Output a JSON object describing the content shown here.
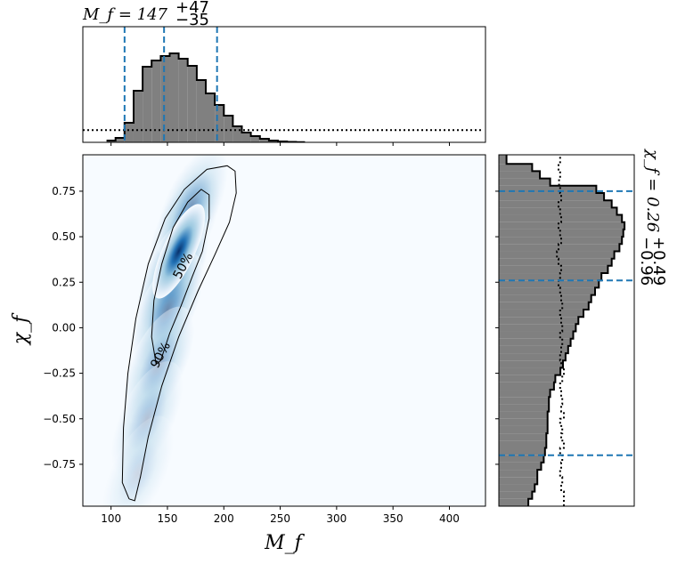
{
  "chart_data": [
    {
      "panel": "joint",
      "type": "heatmap",
      "xlabel": "M_f",
      "ylabel": "χ_f",
      "xlim": [
        75,
        432
      ],
      "ylim": [
        -0.98,
        0.95
      ],
      "xticks": [
        "100",
        "150",
        "200",
        "250",
        "300",
        "350",
        "400"
      ],
      "yticks": [
        "−0.75",
        "−0.50",
        "−0.25",
        "0.00",
        "0.25",
        "0.50",
        "0.75"
      ],
      "colormap": "Blues",
      "density_peak": {
        "x": 160,
        "y": 0.42
      },
      "contours": [
        {
          "label": "50%",
          "points": [
            [
              140,
              -0.2
            ],
            [
              136,
              -0.05
            ],
            [
              138,
              0.15
            ],
            [
              145,
              0.35
            ],
            [
              155,
              0.55
            ],
            [
              168,
              0.69
            ],
            [
              180,
              0.76
            ],
            [
              187,
              0.73
            ],
            [
              187,
              0.6
            ],
            [
              181,
              0.42
            ],
            [
              172,
              0.28
            ],
            [
              162,
              0.12
            ],
            [
              152,
              -0.03
            ],
            [
              144,
              -0.18
            ],
            [
              140,
              -0.2
            ]
          ]
        },
        {
          "label": "90%",
          "points": [
            [
              116,
              -0.94
            ],
            [
              110,
              -0.85
            ],
            [
              111,
              -0.55
            ],
            [
              115,
              -0.25
            ],
            [
              122,
              0.05
            ],
            [
              133,
              0.35
            ],
            [
              148,
              0.6
            ],
            [
              165,
              0.76
            ],
            [
              185,
              0.87
            ],
            [
              203,
              0.89
            ],
            [
              210,
              0.86
            ],
            [
              211,
              0.74
            ],
            [
              205,
              0.58
            ],
            [
              192,
              0.4
            ],
            [
              177,
              0.2
            ],
            [
              160,
              -0.05
            ],
            [
              145,
              -0.32
            ],
            [
              133,
              -0.6
            ],
            [
              126,
              -0.82
            ],
            [
              121,
              -0.95
            ],
            [
              116,
              -0.94
            ]
          ]
        }
      ]
    },
    {
      "panel": "top-marginal",
      "type": "bar",
      "title": "M_f = 147",
      "title_super": "+47",
      "title_sub": "−35",
      "bin_edges": [
        96,
        104,
        112,
        120,
        128,
        136,
        144,
        152,
        160,
        168,
        176,
        184,
        192,
        200,
        208,
        216,
        224,
        232,
        240,
        248,
        256,
        264,
        272
      ],
      "values": [
        0.02,
        0.05,
        0.22,
        0.58,
        0.85,
        0.92,
        0.97,
        1.0,
        0.94,
        0.86,
        0.7,
        0.55,
        0.42,
        0.3,
        0.18,
        0.11,
        0.07,
        0.04,
        0.02,
        0.01,
        0.005,
        0.003
      ],
      "prior_level": 0.13,
      "credible_lines": [
        112,
        147,
        194
      ],
      "line_color": "#1f77b4"
    },
    {
      "panel": "right-marginal",
      "type": "bar",
      "title": "χ_f = 0.26",
      "title_super": "+0.49",
      "title_sub": "−0.96",
      "bin_edges": [
        -0.98,
        -0.94,
        -0.9,
        -0.86,
        -0.82,
        -0.78,
        -0.74,
        -0.7,
        -0.66,
        -0.62,
        -0.58,
        -0.54,
        -0.5,
        -0.46,
        -0.42,
        -0.38,
        -0.34,
        -0.3,
        -0.26,
        -0.22,
        -0.18,
        -0.14,
        -0.1,
        -0.06,
        -0.02,
        0.02,
        0.06,
        0.1,
        0.14,
        0.18,
        0.22,
        0.26,
        0.3,
        0.34,
        0.38,
        0.42,
        0.46,
        0.5,
        0.54,
        0.58,
        0.62,
        0.66,
        0.7,
        0.74,
        0.78,
        0.82,
        0.86,
        0.9,
        0.95
      ],
      "values": [
        0.23,
        0.26,
        0.28,
        0.3,
        0.3,
        0.33,
        0.35,
        0.36,
        0.37,
        0.37,
        0.38,
        0.38,
        0.38,
        0.39,
        0.39,
        0.4,
        0.43,
        0.44,
        0.48,
        0.5,
        0.52,
        0.54,
        0.56,
        0.58,
        0.6,
        0.62,
        0.66,
        0.7,
        0.72,
        0.75,
        0.78,
        0.8,
        0.85,
        0.88,
        0.9,
        0.94,
        0.96,
        0.97,
        0.98,
        0.96,
        0.92,
        0.88,
        0.82,
        0.76,
        0.4,
        0.32,
        0.26,
        0.06
      ],
      "prior_values": [
        0.55,
        0.55,
        0.5,
        0.52,
        0.48,
        0.5,
        0.52,
        0.48,
        0.55,
        0.5,
        0.52,
        0.48,
        0.55,
        0.5,
        0.52,
        0.5,
        0.48,
        0.52,
        0.55,
        0.5,
        0.48,
        0.5,
        0.52,
        0.48,
        0.52,
        0.5,
        0.48,
        0.52,
        0.5,
        0.48,
        0.45,
        0.48,
        0.5,
        0.45,
        0.42,
        0.45,
        0.5,
        0.48,
        0.45,
        0.5,
        0.48,
        0.45,
        0.5,
        0.48,
        0.46,
        0.48,
        0.45,
        0.48
      ],
      "credible_lines": [
        -0.7,
        0.26,
        0.75
      ],
      "line_color": "#1f77b4"
    }
  ]
}
